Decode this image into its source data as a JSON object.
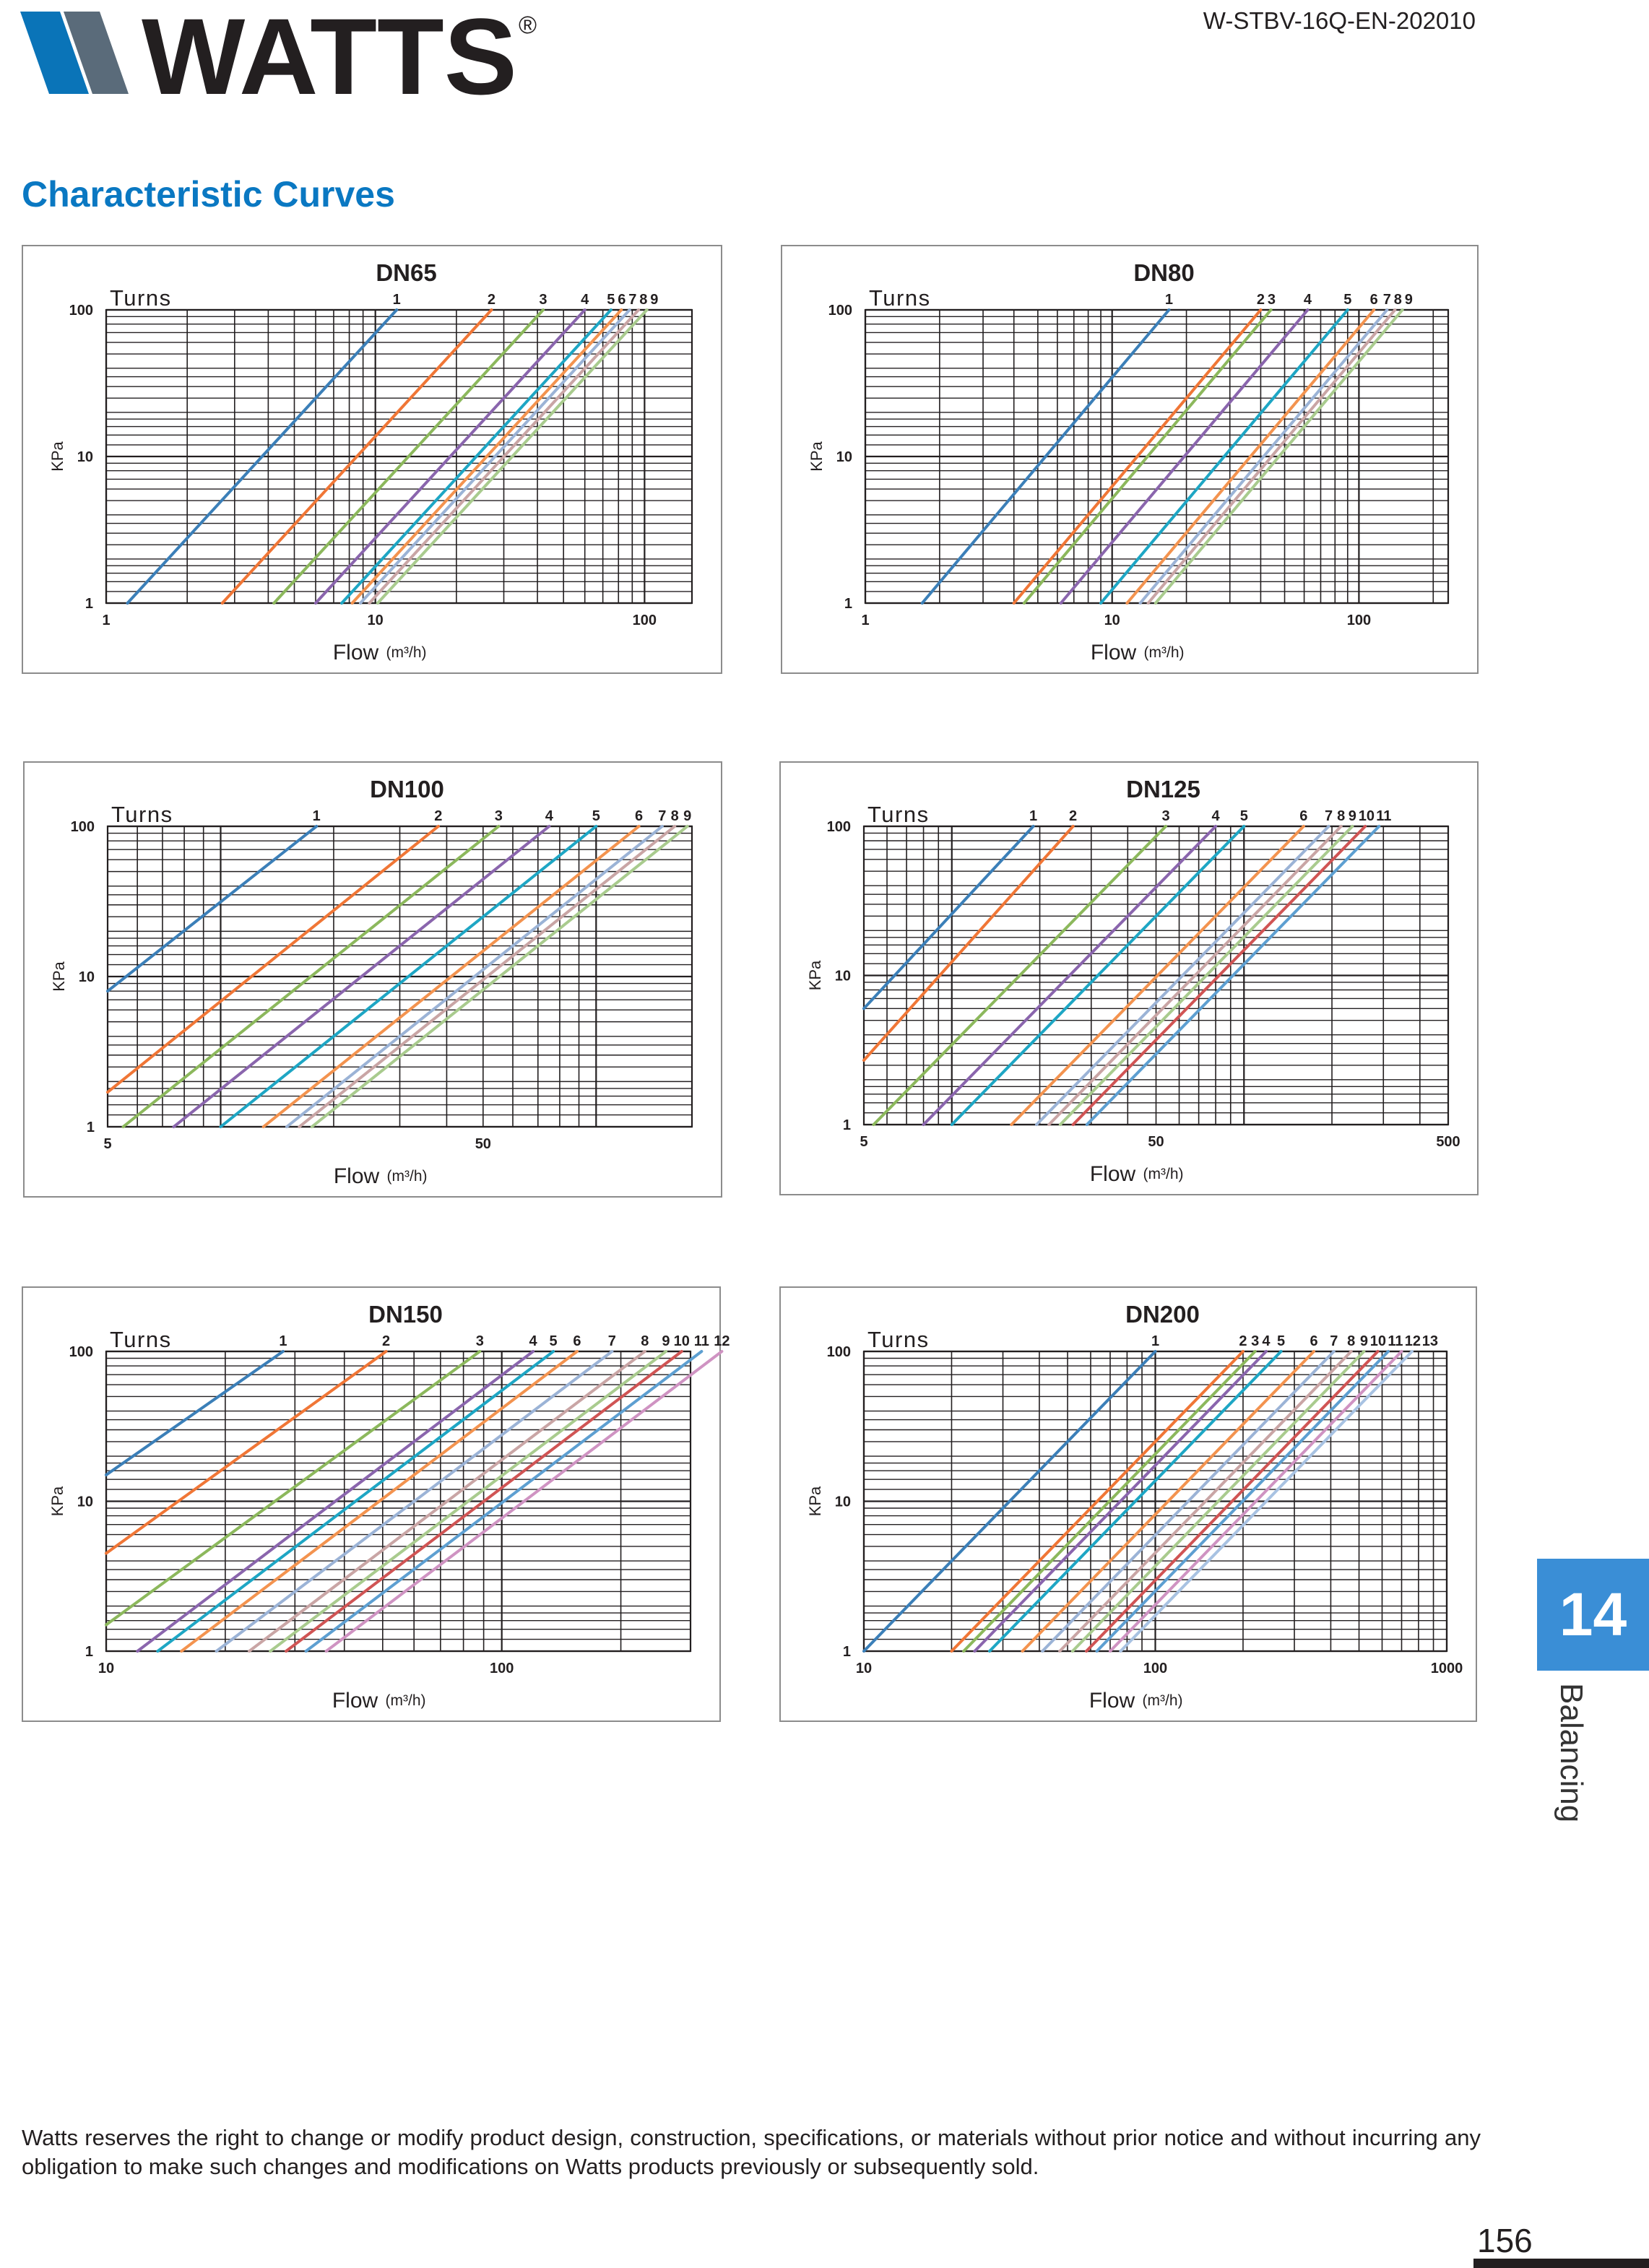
{
  "header": {
    "logo_text": "WATTS",
    "registered_mark": "®",
    "doc_code": "W-STBV-16Q-EN-202010"
  },
  "section_title": "Characteristic Curves",
  "side_tab": {
    "number": "14",
    "label": "Balancing"
  },
  "footer": {
    "disclaimer": "Watts reserves the right to change or modify product design, construction, specifications, or materials without prior notice and without incurring any obligation to make such changes and modifications on Watts products previously or subsequently sold.",
    "page_number": "156"
  },
  "colors": [
    "#3b7fb8",
    "#f07636",
    "#8cb85c",
    "#8a65ad",
    "#1ea6c4",
    "#f3934f",
    "#9bb3d6",
    "#c9a5a5",
    "#a9cb8e",
    "#d05454",
    "#5d9fd1",
    "#cf93c2",
    "#a8c2e2"
  ],
  "chart_data": [
    {
      "type": "line",
      "title": "DN65",
      "xlabel": "Flow",
      "xunit": "(m³/h)",
      "ylabel": "KPa",
      "legend_title": "Turns",
      "xscale": "log",
      "yscale": "log",
      "xlim": [
        1,
        150
      ],
      "ylim": [
        1,
        100
      ],
      "xticks": [
        1,
        10,
        100
      ],
      "yticks": [
        1,
        10,
        100
      ],
      "series": [
        {
          "name": "1",
          "x": [
            1.2,
            12
          ],
          "y": [
            1,
            100
          ]
        },
        {
          "name": "2",
          "x": [
            2.7,
            27
          ],
          "y": [
            1,
            100
          ]
        },
        {
          "name": "3",
          "x": [
            4.2,
            42
          ],
          "y": [
            1,
            100
          ]
        },
        {
          "name": "4",
          "x": [
            6,
            60
          ],
          "y": [
            1,
            100
          ]
        },
        {
          "name": "5",
          "x": [
            7.5,
            75
          ],
          "y": [
            1,
            100
          ]
        },
        {
          "name": "6",
          "x": [
            8.2,
            82
          ],
          "y": [
            1,
            100
          ]
        },
        {
          "name": "7",
          "x": [
            8.8,
            88
          ],
          "y": [
            1,
            100
          ]
        },
        {
          "name": "8",
          "x": [
            9.5,
            95
          ],
          "y": [
            1,
            100
          ]
        },
        {
          "name": "9",
          "x": [
            10.2,
            102
          ],
          "y": [
            1,
            100
          ]
        }
      ]
    },
    {
      "type": "line",
      "title": "DN80",
      "xlabel": "Flow",
      "xunit": "(m³/h)",
      "ylabel": "KPa",
      "legend_title": "Turns",
      "xscale": "log",
      "yscale": "log",
      "xlim": [
        1,
        230
      ],
      "ylim": [
        1,
        100
      ],
      "xticks": [
        1,
        10,
        100
      ],
      "yticks": [
        1,
        10,
        100
      ],
      "series": [
        {
          "name": "1",
          "x": [
            1.7,
            17
          ],
          "y": [
            1,
            100
          ]
        },
        {
          "name": "2",
          "x": [
            4,
            40
          ],
          "y": [
            1,
            100
          ]
        },
        {
          "name": "3",
          "x": [
            4.4,
            44
          ],
          "y": [
            1,
            100
          ]
        },
        {
          "name": "4",
          "x": [
            6.2,
            62
          ],
          "y": [
            1,
            100
          ]
        },
        {
          "name": "5",
          "x": [
            9,
            90
          ],
          "y": [
            1,
            100
          ]
        },
        {
          "name": "6",
          "x": [
            11.5,
            115
          ],
          "y": [
            1,
            100
          ]
        },
        {
          "name": "7",
          "x": [
            13,
            130
          ],
          "y": [
            1,
            100
          ]
        },
        {
          "name": "8",
          "x": [
            14,
            140
          ],
          "y": [
            1,
            100
          ]
        },
        {
          "name": "9",
          "x": [
            15,
            150
          ],
          "y": [
            1,
            100
          ]
        }
      ]
    },
    {
      "type": "line",
      "title": "DN100",
      "xlabel": "Flow",
      "xunit": "(m³/h)",
      "ylabel": "KPa",
      "legend_title": "Turns",
      "xscale": "log",
      "yscale": "log",
      "xlim": [
        5,
        180
      ],
      "ylim": [
        1,
        100
      ],
      "xticks": [
        5,
        50
      ],
      "yticks": [
        1,
        10,
        100
      ],
      "series": [
        {
          "name": "1",
          "x": [
            5,
            18
          ],
          "y": [
            8,
            100
          ]
        },
        {
          "name": "2",
          "x": [
            5,
            38
          ],
          "y": [
            1.7,
            100
          ]
        },
        {
          "name": "3",
          "x": [
            5.5,
            55
          ],
          "y": [
            1,
            100
          ]
        },
        {
          "name": "4",
          "x": [
            7.5,
            75
          ],
          "y": [
            1,
            100
          ]
        },
        {
          "name": "5",
          "x": [
            10,
            100
          ],
          "y": [
            1,
            100
          ]
        },
        {
          "name": "6",
          "x": [
            13,
            130
          ],
          "y": [
            1,
            100
          ]
        },
        {
          "name": "7",
          "x": [
            15,
            150
          ],
          "y": [
            1,
            100
          ]
        },
        {
          "name": "8",
          "x": [
            16.2,
            162
          ],
          "y": [
            1,
            100
          ]
        },
        {
          "name": "9",
          "x": [
            17.5,
            175
          ],
          "y": [
            1,
            100
          ]
        }
      ]
    },
    {
      "type": "line",
      "title": "DN125",
      "xlabel": "Flow",
      "xunit": "(m³/h)",
      "ylabel": "KPa",
      "legend_title": "Turns",
      "xscale": "log",
      "yscale": "log",
      "xlim": [
        5,
        500
      ],
      "ylim": [
        1,
        100
      ],
      "xticks": [
        5,
        50,
        500
      ],
      "yticks": [
        1,
        10,
        100
      ],
      "series": [
        {
          "name": "1",
          "x": [
            5,
            19
          ],
          "y": [
            6,
            100
          ]
        },
        {
          "name": "2",
          "x": [
            5,
            26
          ],
          "y": [
            2.7,
            100
          ]
        },
        {
          "name": "3",
          "x": [
            5.4,
            54
          ],
          "y": [
            1,
            100
          ]
        },
        {
          "name": "4",
          "x": [
            8,
            80
          ],
          "y": [
            1,
            100
          ]
        },
        {
          "name": "5",
          "x": [
            10,
            100
          ],
          "y": [
            1,
            100
          ]
        },
        {
          "name": "6",
          "x": [
            16,
            160
          ],
          "y": [
            1,
            100
          ]
        },
        {
          "name": "7",
          "x": [
            19.5,
            195
          ],
          "y": [
            1,
            100
          ]
        },
        {
          "name": "8",
          "x": [
            21.5,
            215
          ],
          "y": [
            1,
            100
          ]
        },
        {
          "name": "9",
          "x": [
            23.5,
            235
          ],
          "y": [
            1,
            100
          ]
        },
        {
          "name": "10",
          "x": [
            26,
            260
          ],
          "y": [
            1,
            100
          ]
        },
        {
          "name": "11",
          "x": [
            29,
            290
          ],
          "y": [
            1,
            100
          ]
        }
      ]
    },
    {
      "type": "line",
      "title": "DN150",
      "xlabel": "Flow",
      "xunit": "(m³/h)",
      "ylabel": "KPa",
      "legend_title": "Turns",
      "xscale": "log",
      "yscale": "log",
      "xlim": [
        10,
        300
      ],
      "ylim": [
        1,
        100
      ],
      "xticks": [
        10,
        100
      ],
      "yticks": [
        1,
        10,
        100
      ],
      "series": [
        {
          "name": "1",
          "x": [
            10,
            28
          ],
          "y": [
            15,
            100
          ]
        },
        {
          "name": "2",
          "x": [
            10,
            51
          ],
          "y": [
            4.5,
            100
          ]
        },
        {
          "name": "3",
          "x": [
            10,
            88
          ],
          "y": [
            1.5,
            100
          ]
        },
        {
          "name": "4",
          "x": [
            12,
            120
          ],
          "y": [
            1,
            100
          ]
        },
        {
          "name": "5",
          "x": [
            13.5,
            135
          ],
          "y": [
            1,
            100
          ]
        },
        {
          "name": "6",
          "x": [
            15.5,
            155
          ],
          "y": [
            1,
            100
          ]
        },
        {
          "name": "7",
          "x": [
            19,
            190
          ],
          "y": [
            1,
            100
          ]
        },
        {
          "name": "8",
          "x": [
            23,
            230
          ],
          "y": [
            1,
            100
          ]
        },
        {
          "name": "9",
          "x": [
            26,
            260
          ],
          "y": [
            1,
            100
          ]
        },
        {
          "name": "10",
          "x": [
            28.5,
            285
          ],
          "y": [
            1,
            100
          ]
        },
        {
          "name": "11",
          "x": [
            32,
            320
          ],
          "y": [
            1,
            100
          ]
        },
        {
          "name": "12",
          "x": [
            36,
            360
          ],
          "y": [
            1,
            100
          ]
        }
      ]
    },
    {
      "type": "line",
      "title": "DN200",
      "xlabel": "Flow",
      "xunit": "(m³/h)",
      "ylabel": "KPa",
      "legend_title": "Turns",
      "xscale": "log",
      "yscale": "log",
      "xlim": [
        10,
        1000
      ],
      "ylim": [
        1,
        100
      ],
      "xticks": [
        10,
        100,
        1000
      ],
      "yticks": [
        1,
        10,
        100
      ],
      "series": [
        {
          "name": "1",
          "x": [
            10,
            100
          ],
          "y": [
            1,
            100
          ]
        },
        {
          "name": "2",
          "x": [
            20,
            200
          ],
          "y": [
            1,
            100
          ]
        },
        {
          "name": "3",
          "x": [
            22,
            220
          ],
          "y": [
            1,
            100
          ]
        },
        {
          "name": "4",
          "x": [
            24,
            240
          ],
          "y": [
            1,
            100
          ]
        },
        {
          "name": "5",
          "x": [
            27,
            270
          ],
          "y": [
            1,
            100
          ]
        },
        {
          "name": "6",
          "x": [
            35,
            350
          ],
          "y": [
            1,
            100
          ]
        },
        {
          "name": "7",
          "x": [
            41,
            410
          ],
          "y": [
            1,
            100
          ]
        },
        {
          "name": "8",
          "x": [
            47,
            470
          ],
          "y": [
            1,
            100
          ]
        },
        {
          "name": "9",
          "x": [
            52,
            520
          ],
          "y": [
            1,
            100
          ]
        },
        {
          "name": "10",
          "x": [
            58,
            580
          ],
          "y": [
            1,
            100
          ]
        },
        {
          "name": "11",
          "x": [
            63,
            630
          ],
          "y": [
            1,
            100
          ]
        },
        {
          "name": "12",
          "x": [
            70,
            700
          ],
          "y": [
            1,
            100
          ]
        },
        {
          "name": "13",
          "x": [
            76,
            760
          ],
          "y": [
            1,
            100
          ]
        }
      ]
    }
  ]
}
